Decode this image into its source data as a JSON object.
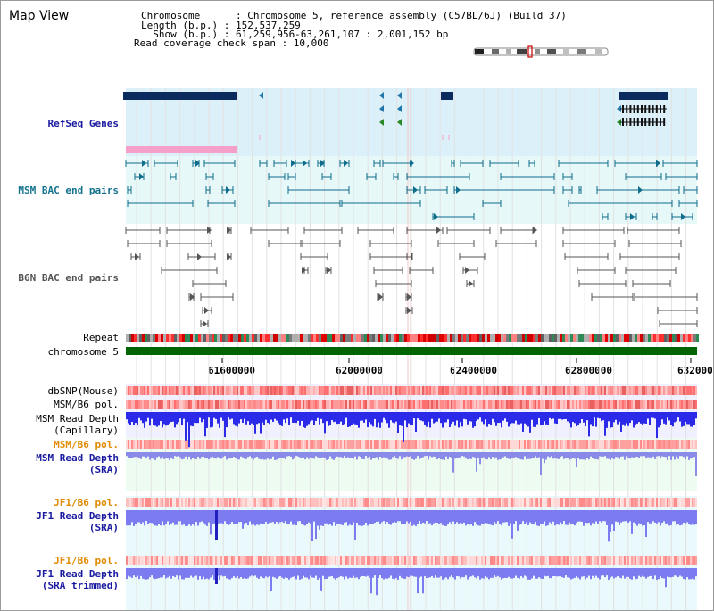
{
  "panel": {
    "title": "Map View"
  },
  "info": {
    "chromosome_line": "Chromosome      : Chromosome 5, reference assembly (C57BL/6J) (Build 37)",
    "length_line": "Length (b.p.) : 152,537,259",
    "show_line": "  Show (b.p.) : 61,259,956-63,261,107 : 2,001,152 bp",
    "coverage_line": "Read coverage check span : 10,000"
  },
  "tracks": {
    "refseq": {
      "label": "RefSeq Genes",
      "color": "#0b0b8a"
    },
    "msm_bac": {
      "label": "MSM BAC end pairs",
      "color": "#0e6c8c"
    },
    "b6n_bac": {
      "label": "B6N BAC end pairs",
      "color": "#555555"
    },
    "repeat": {
      "label": "Repeat"
    },
    "chromosome": {
      "label": "chromosome 5"
    },
    "dbsnp": {
      "label": "dbSNP(Mouse)"
    },
    "msm_b6_pol_1": {
      "label": "MSM/B6 pol."
    },
    "msm_depth_cap": {
      "label_line1": "MSM Read Depth",
      "label_line2": "(Capillary)"
    },
    "msm_b6_pol_2": {
      "label": "MSM/B6 pol."
    },
    "msm_depth_sra": {
      "label_line1": "MSM Read Depth",
      "label_line2": "(SRA)"
    },
    "jf1_b6_pol_1": {
      "label": "JF1/B6 pol."
    },
    "jf1_depth_sra": {
      "label_line1": "JF1 Read Depth",
      "label_line2": "(SRA)"
    },
    "jf1_b6_pol_2": {
      "label": "JF1/B6 pol."
    },
    "jf1_depth_trim": {
      "label_line1": "JF1 Read Depth",
      "label_line2": "(SRA trimmed)"
    }
  },
  "axis": {
    "ticks": [
      "61600000",
      "62000000",
      "62400000",
      "62800000",
      "632000"
    ]
  },
  "colors": {
    "label_blue": "#1a1aa0",
    "label_orange": "#e08a00",
    "label_teal": "#16738f",
    "refseq_band": "#dcf0fa",
    "msm_band": "#e6f8f8",
    "snp_red": "#ff9090",
    "depth_blue": "#2a2ae8",
    "chrom_green": "#006400"
  }
}
